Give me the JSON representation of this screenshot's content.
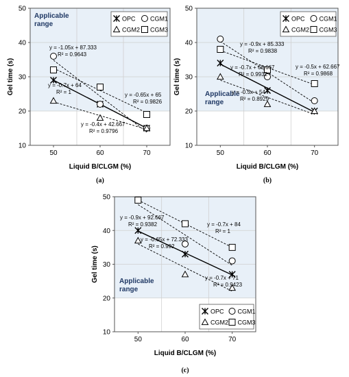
{
  "chart_data": [
    {
      "type": "scatter",
      "panel_label": "(a)",
      "xlabel": "Liquid B/CLGM (%)",
      "ylabel": "Gel time (s)",
      "xlim": [
        45,
        75
      ],
      "ylim": [
        10,
        50
      ],
      "xticks": [
        50,
        60,
        70
      ],
      "yticks": [
        10,
        20,
        30,
        40,
        50
      ],
      "shaded_region": {
        "y_from": 20,
        "y_to": 50,
        "label": "Applicable range",
        "label_lines": [
          "Applicable",
          "range"
        ],
        "label_at": "top-left"
      },
      "legend_position": "top-right",
      "series": [
        {
          "name": "OPC",
          "marker": "asterisk",
          "x": [
            50,
            60,
            70
          ],
          "y": [
            29,
            22,
            15
          ],
          "fit_line": "solid"
        },
        {
          "name": "CGM1",
          "marker": "circle",
          "x": [
            50,
            60,
            70
          ],
          "y": [
            36,
            22,
            15
          ],
          "fit_line": "dashed"
        },
        {
          "name": "CGM2",
          "marker": "triangle",
          "x": [
            50,
            60,
            70
          ],
          "y": [
            23,
            18,
            15
          ],
          "fit_line": "dashed"
        },
        {
          "name": "CGM3",
          "marker": "square",
          "x": [
            50,
            60,
            70
          ],
          "y": [
            32,
            27,
            19
          ],
          "fit_line": "dashed"
        }
      ],
      "annotations": [
        {
          "lines": [
            "y = -1.05x + 87.333",
            "R² = 0.9643"
          ]
        },
        {
          "lines": [
            "y = -0.7x + 64",
            "R² = 1"
          ]
        },
        {
          "lines": [
            "y = -0.65x + 65",
            "R² = 0.9826"
          ]
        },
        {
          "lines": [
            "y = -0.4x + 42.667",
            "R² = 0.9796"
          ]
        }
      ]
    },
    {
      "type": "scatter",
      "panel_label": "(b)",
      "xlabel": "Liquid B/CLGM (%)",
      "ylabel": "Gel time (s)",
      "xlim": [
        45,
        75
      ],
      "ylim": [
        10,
        50
      ],
      "xticks": [
        50,
        60,
        70
      ],
      "yticks": [
        10,
        20,
        30,
        40,
        50
      ],
      "shaded_region": {
        "y_from": 20,
        "y_to": 50,
        "label": "Applicable range",
        "label_lines": [
          "Applicable",
          "range"
        ],
        "label_at": "right-middle"
      },
      "legend_position": "top-right",
      "series": [
        {
          "name": "OPC",
          "marker": "asterisk",
          "x": [
            50,
            60,
            70
          ],
          "y": [
            34,
            26,
            20
          ],
          "fit_line": "solid"
        },
        {
          "name": "CGM1",
          "marker": "circle",
          "x": [
            50,
            60,
            70
          ],
          "y": [
            41,
            30,
            23
          ],
          "fit_line": "dashed"
        },
        {
          "name": "CGM2",
          "marker": "triangle",
          "x": [
            50,
            60,
            70
          ],
          "y": [
            30,
            22,
            20
          ],
          "fit_line": "dashed"
        },
        {
          "name": "CGM3",
          "marker": "square",
          "x": [
            50,
            60,
            70
          ],
          "y": [
            38,
            32,
            28
          ],
          "fit_line": "dashed"
        }
      ],
      "annotations": [
        {
          "lines": [
            "y = -0.9x + 85.333",
            "R² = 0.9838"
          ]
        },
        {
          "lines": [
            "y = -0.7x + 68.667",
            "R² = 0.9932"
          ]
        },
        {
          "lines": [
            "y = -0.5x + 62.667",
            "R² = 0.9868"
          ]
        },
        {
          "lines": [
            "y = -0.5x + 54",
            "R² = 0.8929"
          ]
        }
      ]
    },
    {
      "type": "scatter",
      "panel_label": "(c)",
      "xlabel": "Liquid B/CLGM (%)",
      "ylabel": "Gel time (s)",
      "xlim": [
        45,
        75
      ],
      "ylim": [
        10,
        50
      ],
      "xticks": [
        50,
        60,
        70
      ],
      "yticks": [
        10,
        20,
        30,
        40,
        50
      ],
      "shaded_region": {
        "y_from": 20,
        "y_to": 50,
        "label": "Applicable range",
        "label_lines": [
          "Applicable",
          "range"
        ],
        "label_at": "bottom-left"
      },
      "legend_position": "bottom-right",
      "series": [
        {
          "name": "OPC",
          "marker": "asterisk",
          "x": [
            50,
            60,
            70
          ],
          "y": [
            40,
            33,
            27
          ],
          "fit_line": "solid"
        },
        {
          "name": "CGM1",
          "marker": "circle",
          "x": [
            50,
            60,
            70
          ],
          "y": [
            49,
            36,
            31
          ],
          "fit_line": "dashed"
        },
        {
          "name": "CGM2",
          "marker": "triangle",
          "x": [
            50,
            60,
            70
          ],
          "y": [
            37,
            27,
            23
          ],
          "fit_line": "dashed"
        },
        {
          "name": "CGM3",
          "marker": "square",
          "x": [
            50,
            60,
            70
          ],
          "y": [
            49,
            42,
            35
          ],
          "fit_line": "dashed"
        }
      ],
      "annotations": [
        {
          "lines": [
            "y = -0.9x + 92.667",
            "R² = 0.9382"
          ]
        },
        {
          "lines": [
            "y = -0.65x + 72.333",
            "R² = 0.992"
          ]
        },
        {
          "lines": [
            "y = -0.7x + 84",
            "R² = 1"
          ]
        },
        {
          "lines": [
            "y = -0.7x + 71",
            "R² = 0.9423"
          ]
        }
      ]
    }
  ]
}
